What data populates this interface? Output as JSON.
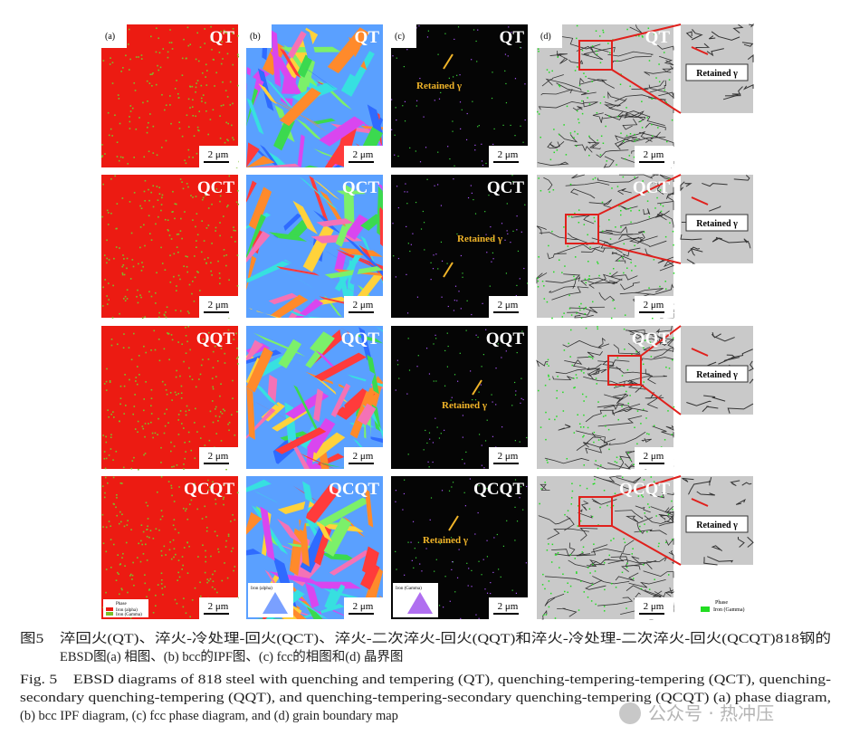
{
  "figure": {
    "panel_labels": [
      "(a)",
      "(b)",
      "(c)",
      "(d)"
    ],
    "rows": [
      {
        "label": "QT"
      },
      {
        "label": "QCT"
      },
      {
        "label": "QQT"
      },
      {
        "label": "QCQT"
      }
    ],
    "scale_bar": "2 μm",
    "annotation": "Retained γ",
    "legend": {
      "phase": "Phase",
      "alpha": "Iron (alpha)",
      "gamma": "Iron (Gamma)"
    },
    "caption_cn": [
      "图5　淬回火(QT)、淬火-冷处理-回火(QCT)、淬火-二次淬火-回火(QQT)和淬火-冷处理-二次淬火-回火(QCQT)818钢的",
      "EBSD图(a) 相图、(b) bcc的IPF图、(c) fcc的相图和(d) 晶界图"
    ],
    "caption_en": [
      "Fig. 5　EBSD diagrams of 818 steel with quenching and tempering (QT), quenching-tempering-tempering (QCT), quenching-",
      "secondary quenching-tempering (QQT), and quenching-tempering-secondary quenching-tempering (QCQT) (a) phase diagram,",
      "(b) bcc IPF diagram, (c) fcc phase diagram, and (d) grain boundary map"
    ],
    "watermark": "公众号 · 热冲压"
  }
}
